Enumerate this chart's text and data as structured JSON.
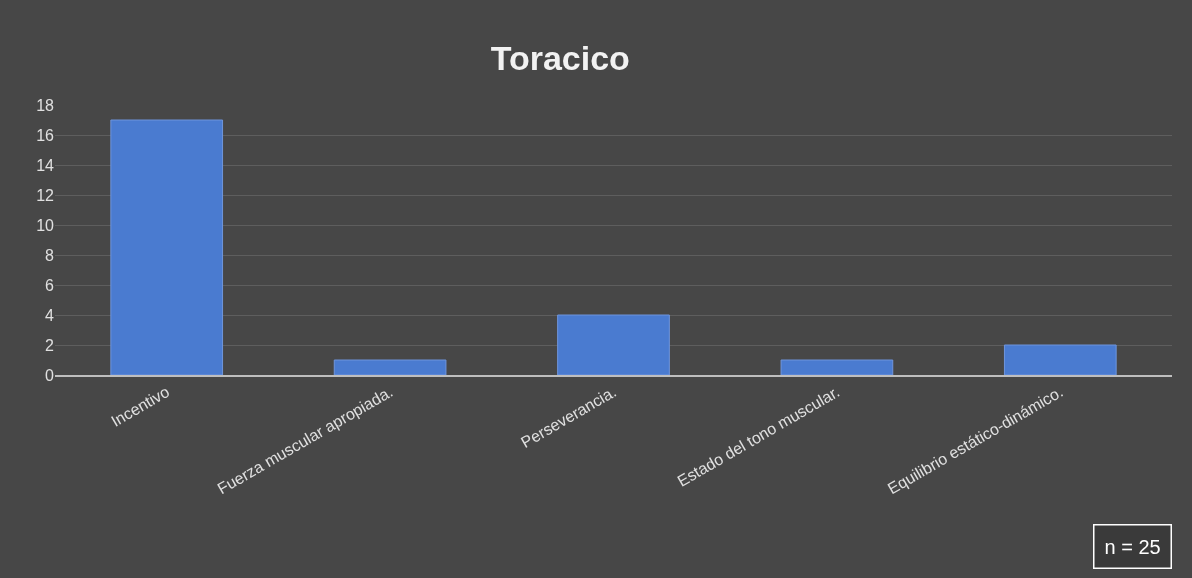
{
  "chart_data": {
    "type": "bar",
    "title": "Toracico",
    "categories": [
      "Incentivo",
      "Fuerza muscular apropiada.",
      "Perseverancia.",
      "Estado del tono muscular.",
      "Equilibrio estático-dinámico."
    ],
    "values": [
      17,
      1,
      4,
      1,
      2
    ],
    "color": "#4a7bd0",
    "ylim": [
      0,
      18
    ],
    "yticks": [
      0,
      2,
      4,
      6,
      8,
      10,
      12,
      14,
      16,
      18
    ],
    "grid": "y",
    "annotations": [
      "n = 25"
    ]
  }
}
